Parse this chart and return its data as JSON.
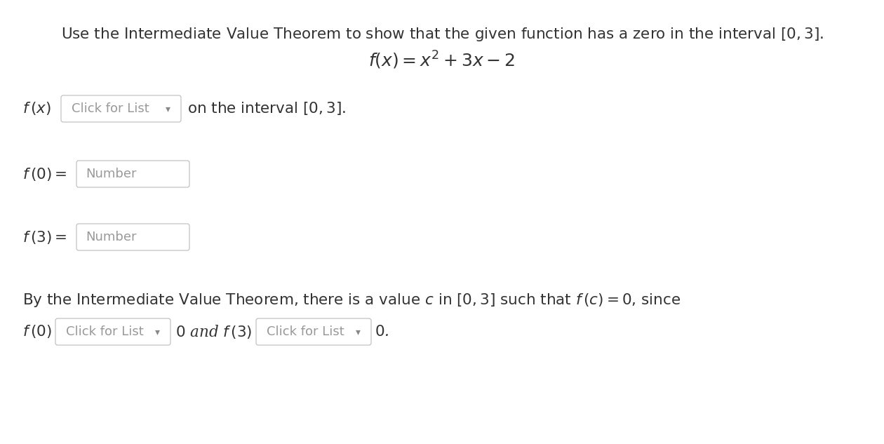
{
  "background_color": "#ffffff",
  "text_color": "#333333",
  "box_border_color": "#bbbbbb",
  "box_bg_color": "#ffffff",
  "placeholder_color": "#999999",
  "arrow_color": "#888888",
  "title1": "Use the Intermediate Value Theorem to show that the given function has a zero in the interval $[0, 3]$.",
  "title2": "$f(x) = x^2 + 3x - 2$",
  "row1_label": "$f\\,(x)$",
  "row1_box": "Click for List",
  "row1_suffix": "on the interval $[0, 3]$.",
  "row2_label": "$f\\,(0) =$",
  "row2_box": "Number",
  "row3_label": "$f\\,(3) =$",
  "row3_box": "Number",
  "bottom1": "By the Intermediate Value Theorem, there is a value $c$ in $[0, 3]$ such that $f\\,(c) = 0$, since",
  "bot_label1": "$f\\,(0)$",
  "bot_box1": "Click for List",
  "bot_mid": "$0$ and $f\\,(3)$",
  "bot_box2": "Click for List",
  "bot_end": "$0$.",
  "font_size_title": 15.5,
  "font_size_formula": 18,
  "font_size_body": 15.5,
  "font_size_box": 13,
  "fig_width": 12.6,
  "fig_height": 6.33,
  "dpi": 100
}
